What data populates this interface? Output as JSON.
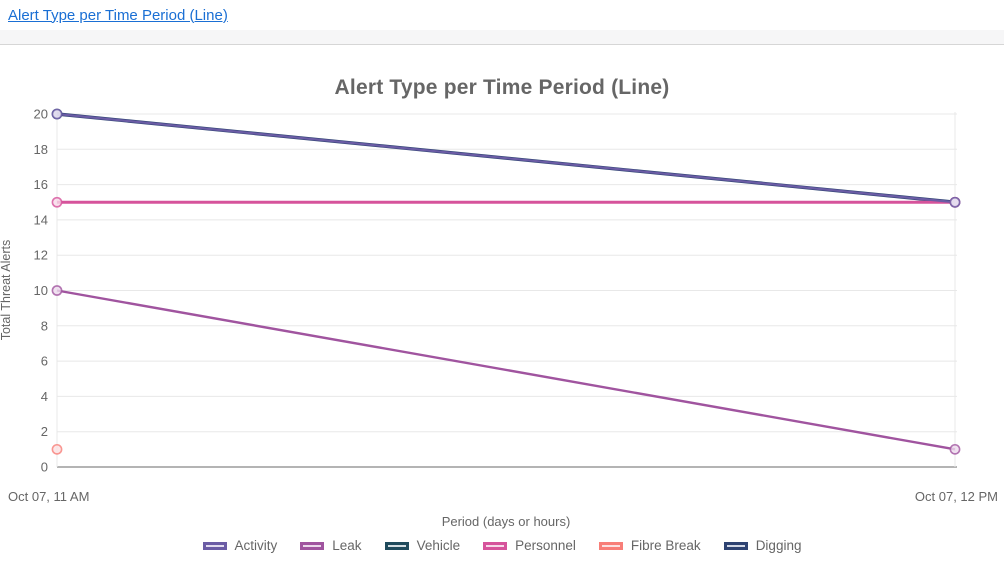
{
  "page": {
    "link_label": "Alert Type per Time Period (Line)"
  },
  "chart": {
    "title": "Alert Type per Time Period (Line)",
    "x_tick_left": "Oct 07, 11 AM",
    "x_tick_right": "Oct 07, 12 PM"
  },
  "chart_data": {
    "type": "line",
    "title": "Alert Type per Time Period (Line)",
    "categories": [
      "Oct 07, 11 AM",
      "Oct 07, 12 PM"
    ],
    "xlabel": "Period (days or hours)",
    "ylabel": "Total Threat Alerts",
    "ylim": [
      0,
      20
    ],
    "y_tick_step": 2,
    "grid": true,
    "legend_position": "bottom",
    "series": [
      {
        "name": "Activity",
        "values": [
          20,
          15
        ],
        "color": "#6b5ca5",
        "fill": "#e2dcef",
        "line_width": 2.2
      },
      {
        "name": "Leak",
        "values": [
          10,
          1
        ],
        "color": "#a0549f",
        "fill": "#ecd9ec",
        "line_width": 2.4
      },
      {
        "name": "Vehicle",
        "values": [
          null,
          null
        ],
        "color": "#1f4a5c",
        "fill": "#d5dee3",
        "line_width": 2.4
      },
      {
        "name": "Personnel",
        "values": [
          15,
          15
        ],
        "color": "#d6539b",
        "fill": "#f7d9e9",
        "line_width": 3
      },
      {
        "name": "Fibre Break",
        "values": [
          1,
          null
        ],
        "color": "#f87e78",
        "fill": "#fbe1e2",
        "line_width": 2.4
      },
      {
        "name": "Digging",
        "values": [
          20,
          15
        ],
        "color": "#2e4372",
        "fill": "#d3d9e6",
        "line_width": 3.4
      }
    ],
    "colors": {
      "grid": "#e8e8e8",
      "axis_line": "#b4b4b4",
      "tick_text": "#666666",
      "title_text": "#666666",
      "link": "#1a6fd4"
    }
  }
}
